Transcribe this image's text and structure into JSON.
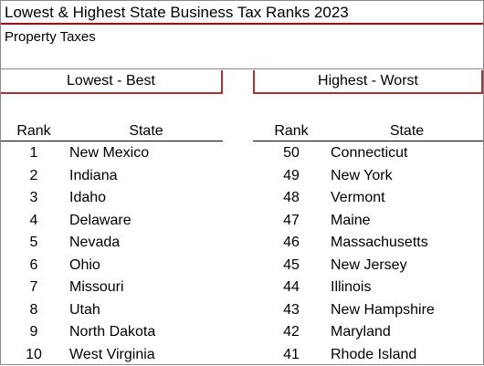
{
  "title": "Lowest & Highest  State Business Tax Ranks 2023",
  "subtitle": "Property Taxes",
  "lowest": {
    "heading": "Lowest - Best",
    "rank_header": "Rank",
    "state_header": "State",
    "rows": [
      {
        "rank": "1",
        "state": "New Mexico"
      },
      {
        "rank": "2",
        "state": "Indiana"
      },
      {
        "rank": "3",
        "state": "Idaho"
      },
      {
        "rank": "4",
        "state": "Delaware"
      },
      {
        "rank": "5",
        "state": "Nevada"
      },
      {
        "rank": "6",
        "state": "Ohio"
      },
      {
        "rank": "7",
        "state": "Missouri"
      },
      {
        "rank": "8",
        "state": "Utah"
      },
      {
        "rank": "9",
        "state": "North Dakota"
      },
      {
        "rank": "10",
        "state": "West Virginia"
      }
    ]
  },
  "highest": {
    "heading": "Highest - Worst",
    "rank_header": "Rank",
    "state_header": "State",
    "rows": [
      {
        "rank": "50",
        "state": "Connecticut"
      },
      {
        "rank": "49",
        "state": "New York"
      },
      {
        "rank": "48",
        "state": "Vermont"
      },
      {
        "rank": "47",
        "state": "Maine"
      },
      {
        "rank": "46",
        "state": "Massachusetts"
      },
      {
        "rank": "45",
        "state": "New Jersey"
      },
      {
        "rank": "44",
        "state": "Illinois"
      },
      {
        "rank": "43",
        "state": "New Hampshire"
      },
      {
        "rank": "42",
        "state": "Maryland"
      },
      {
        "rank": "41",
        "state": "Rhode Island"
      }
    ]
  }
}
